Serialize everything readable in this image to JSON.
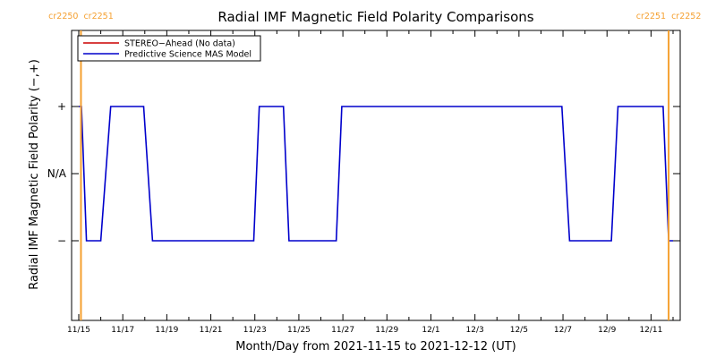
{
  "chart_data": {
    "type": "line",
    "title": "Radial IMF Magnetic Field Polarity Comparisons",
    "xlabel": "Month/Day from 2021-11-15 to 2021-12-12 (UT)",
    "ylabel": "Radial IMF Magnetic Field Polarity (−,+)",
    "xlim": [
      0,
      27
    ],
    "ylim": [
      -2,
      2
    ],
    "x_ticks": [
      {
        "value": 0,
        "label": "11/15"
      },
      {
        "value": 2,
        "label": "11/17"
      },
      {
        "value": 4,
        "label": "11/19"
      },
      {
        "value": 6,
        "label": "11/21"
      },
      {
        "value": 8,
        "label": "11/23"
      },
      {
        "value": 10,
        "label": "11/25"
      },
      {
        "value": 12,
        "label": "11/27"
      },
      {
        "value": 14,
        "label": "11/29"
      },
      {
        "value": 16,
        "label": "12/1"
      },
      {
        "value": 18,
        "label": "12/3"
      },
      {
        "value": 20,
        "label": "12/5"
      },
      {
        "value": 22,
        "label": "12/7"
      },
      {
        "value": 24,
        "label": "12/9"
      },
      {
        "value": 26,
        "label": "12/11"
      }
    ],
    "y_ticks": [
      {
        "value": 1,
        "label": "+"
      },
      {
        "value": 0,
        "label": "N/A"
      },
      {
        "value": -1,
        "label": "−"
      }
    ],
    "legend": {
      "position": "top-left",
      "entries": [
        {
          "label": "STEREO−Ahead (No data)",
          "color": "#cc0000"
        },
        {
          "label": "Predictive Science MAS Model",
          "color": "#0000cc"
        }
      ]
    },
    "series": [
      {
        "name": "Predictive Science MAS Model",
        "color": "#0000cc",
        "x": [
          0.0,
          0.12,
          0.35,
          1.0,
          1.45,
          2.95,
          3.35,
          7.95,
          8.2,
          9.3,
          9.55,
          11.7,
          11.95,
          21.95,
          22.3,
          24.2,
          24.5,
          26.55,
          26.8,
          27.0
        ],
        "y": [
          1,
          1,
          -1,
          -1,
          1,
          1,
          -1,
          -1,
          1,
          1,
          -1,
          -1,
          1,
          1,
          -1,
          -1,
          1,
          1,
          -1,
          -1
        ]
      },
      {
        "name": "STEREO−Ahead (No data)",
        "color": "#cc0000",
        "x": [],
        "y": []
      }
    ],
    "carrington_markers": [
      {
        "x": 0.1,
        "left_label": "cr2250",
        "right_label": "cr2251",
        "color": "#f5a030"
      },
      {
        "x": 26.8,
        "left_label": "cr2251",
        "right_label": "cr2252",
        "color": "#f5a030"
      }
    ],
    "grid": false
  }
}
